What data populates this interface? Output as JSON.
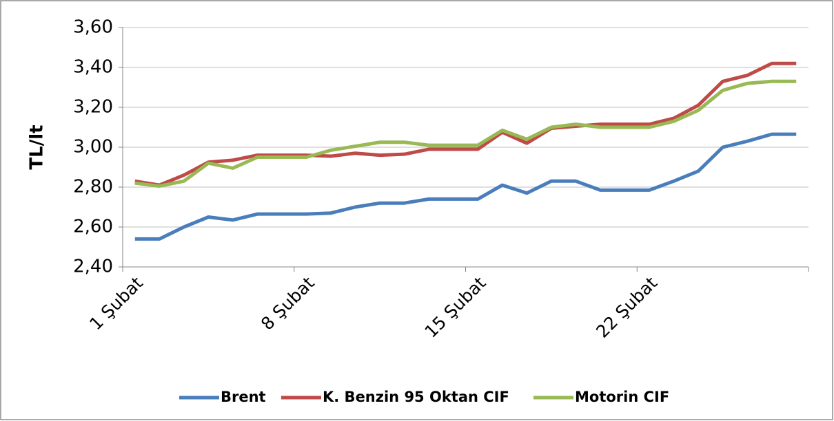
{
  "chart_data": {
    "type": "line",
    "y_label": "TL/lt",
    "categories": [
      "1 Şubat",
      null,
      null,
      null,
      null,
      null,
      null,
      "8 Şubat",
      null,
      null,
      null,
      null,
      null,
      null,
      "15 Şubat",
      null,
      null,
      null,
      null,
      null,
      null,
      "22 Şubat",
      null,
      null,
      null,
      null,
      null,
      null
    ],
    "series": [
      {
        "name": "Brent",
        "color": "#4a7ebb",
        "values": [
          2.54,
          2.54,
          2.6,
          2.65,
          2.635,
          2.665,
          2.665,
          2.665,
          2.67,
          2.7,
          2.72,
          2.72,
          2.74,
          2.74,
          2.74,
          2.81,
          2.77,
          2.83,
          2.83,
          2.785,
          2.785,
          2.785,
          2.83,
          2.88,
          3.0,
          3.03,
          3.065,
          3.065
        ]
      },
      {
        "name": "K. Benzin 95 Oktan CIF",
        "color": "#be4b48",
        "values": [
          2.83,
          2.81,
          2.86,
          2.925,
          2.935,
          2.96,
          2.96,
          2.96,
          2.955,
          2.97,
          2.96,
          2.965,
          2.99,
          2.99,
          2.99,
          3.075,
          3.02,
          3.095,
          3.105,
          3.115,
          3.115,
          3.115,
          3.145,
          3.21,
          3.33,
          3.36,
          3.42,
          3.42
        ]
      },
      {
        "name": "Motorin CIF",
        "color": "#98b954",
        "values": [
          2.82,
          2.805,
          2.83,
          2.92,
          2.895,
          2.95,
          2.95,
          2.95,
          2.985,
          3.005,
          3.025,
          3.025,
          3.01,
          3.01,
          3.01,
          3.085,
          3.04,
          3.1,
          3.115,
          3.1,
          3.1,
          3.1,
          3.13,
          3.185,
          3.285,
          3.32,
          3.33,
          3.33
        ]
      }
    ],
    "ylim": [
      2.4,
      3.6
    ],
    "yticks": [
      {
        "value": 2.4,
        "label": "2,40"
      },
      {
        "value": 2.6,
        "label": "2,60"
      },
      {
        "value": 2.8,
        "label": "2,80"
      },
      {
        "value": 3.0,
        "label": "3,00"
      },
      {
        "value": 3.2,
        "label": "3,20"
      },
      {
        "value": 3.4,
        "label": "3,40"
      },
      {
        "value": 3.6,
        "label": "3,60"
      }
    ],
    "grid": true,
    "legend": "bottom"
  }
}
